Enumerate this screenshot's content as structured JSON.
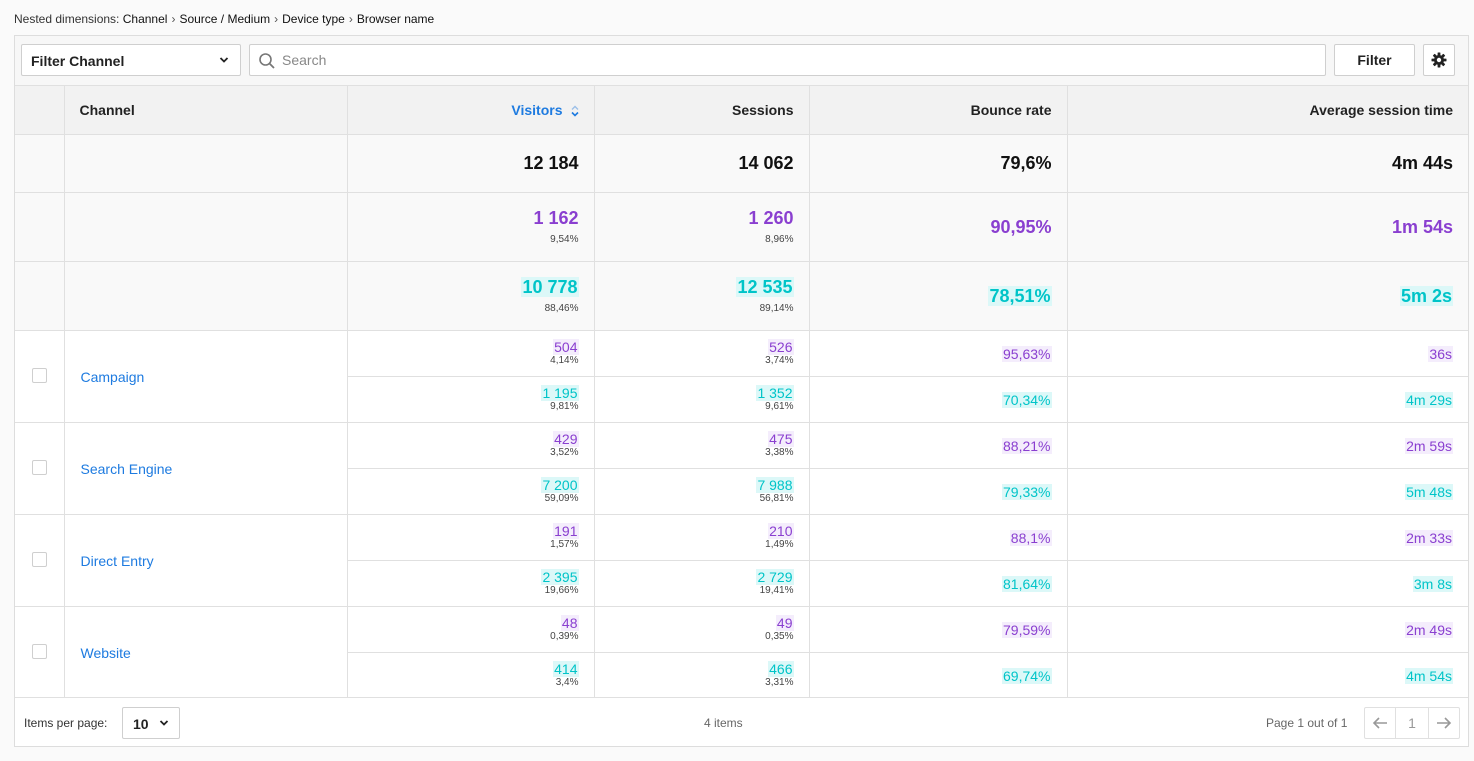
{
  "breadcrumb": {
    "prefix": "Nested dimensions:",
    "items": [
      "Channel",
      "Source / Medium",
      "Device type",
      "Browser name"
    ],
    "separator": "›"
  },
  "toolbar": {
    "filter_select_label": "Filter Channel",
    "search_placeholder": "Search",
    "filter_button": "Filter",
    "settings_icon": "gear-icon"
  },
  "columns": {
    "channel": "Channel",
    "visitors": "Visitors",
    "sessions": "Sessions",
    "bounce_rate": "Bounce rate",
    "avg_session_time": "Average session time"
  },
  "colors": {
    "accent": "#1e7be0",
    "segment_a": "#8a3fd0",
    "segment_b": "#00c4c8"
  },
  "totals": {
    "visitors": "12 184",
    "sessions": "14 062",
    "bounce_rate": "79,6%",
    "avg_session_time": "4m 44s"
  },
  "segments": [
    {
      "visitors": "1 162",
      "visitors_pct": "9,54%",
      "sessions": "1 260",
      "sessions_pct": "8,96%",
      "bounce_rate": "90,95%",
      "avg_session_time": "1m 54s"
    },
    {
      "visitors": "10 778",
      "visitors_pct": "88,46%",
      "sessions": "12 535",
      "sessions_pct": "89,14%",
      "bounce_rate": "78,51%",
      "avg_session_time": "5m 2s"
    }
  ],
  "rows": [
    {
      "name": "Campaign",
      "a": {
        "visitors": "504",
        "visitors_pct": "4,14%",
        "sessions": "526",
        "sessions_pct": "3,74%",
        "bounce_rate": "95,63%",
        "avg_session_time": "36s"
      },
      "b": {
        "visitors": "1 195",
        "visitors_pct": "9,81%",
        "sessions": "1 352",
        "sessions_pct": "9,61%",
        "bounce_rate": "70,34%",
        "avg_session_time": "4m 29s"
      }
    },
    {
      "name": "Search Engine",
      "a": {
        "visitors": "429",
        "visitors_pct": "3,52%",
        "sessions": "475",
        "sessions_pct": "3,38%",
        "bounce_rate": "88,21%",
        "avg_session_time": "2m 59s"
      },
      "b": {
        "visitors": "7 200",
        "visitors_pct": "59,09%",
        "sessions": "7 988",
        "sessions_pct": "56,81%",
        "bounce_rate": "79,33%",
        "avg_session_time": "5m 48s"
      }
    },
    {
      "name": "Direct Entry",
      "a": {
        "visitors": "191",
        "visitors_pct": "1,57%",
        "sessions": "210",
        "sessions_pct": "1,49%",
        "bounce_rate": "88,1%",
        "avg_session_time": "2m 33s"
      },
      "b": {
        "visitors": "2 395",
        "visitors_pct": "19,66%",
        "sessions": "2 729",
        "sessions_pct": "19,41%",
        "bounce_rate": "81,64%",
        "avg_session_time": "3m 8s"
      }
    },
    {
      "name": "Website",
      "a": {
        "visitors": "48",
        "visitors_pct": "0,39%",
        "sessions": "49",
        "sessions_pct": "0,35%",
        "bounce_rate": "79,59%",
        "avg_session_time": "2m 49s"
      },
      "b": {
        "visitors": "414",
        "visitors_pct": "3,4%",
        "sessions": "466",
        "sessions_pct": "3,31%",
        "bounce_rate": "69,74%",
        "avg_session_time": "4m 54s"
      }
    }
  ],
  "footer": {
    "items_per_page_label": "Items per page:",
    "items_per_page_value": "10",
    "item_count": "4 items",
    "page_info": "Page 1 out of 1",
    "current_page": "1"
  }
}
